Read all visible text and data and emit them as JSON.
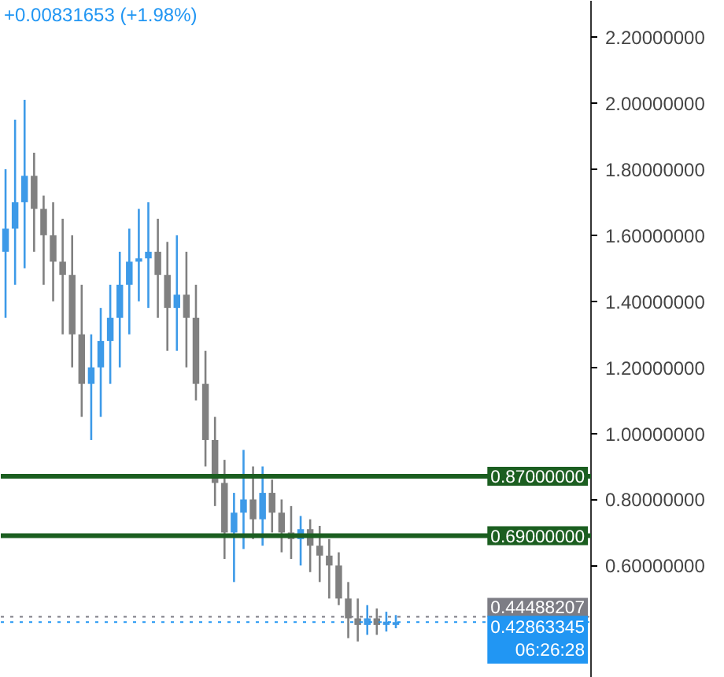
{
  "chart_data": {
    "type": "candlestick",
    "subtitle": "+0.00831653 (+1.98%)",
    "categories": [
      null,
      null,
      null,
      null,
      null,
      null,
      null,
      null,
      null,
      null,
      null,
      null,
      null,
      null,
      null,
      null,
      null,
      null,
      null,
      null,
      null,
      null,
      null,
      null,
      null,
      null,
      null,
      null,
      null,
      null,
      null,
      null,
      null,
      null,
      null,
      null,
      null,
      null,
      null,
      null,
      null,
      null,
      null,
      null,
      null,
      null,
      null,
      null,
      null,
      null,
      null,
      null,
      null,
      null,
      null,
      null,
      null,
      null,
      null,
      null,
      null,
      null
    ],
    "ohlc": [
      [
        1.55,
        1.8,
        1.35,
        1.62
      ],
      [
        1.62,
        1.95,
        1.45,
        1.7
      ],
      [
        1.7,
        2.01,
        1.5,
        1.78
      ],
      [
        1.78,
        1.85,
        1.55,
        1.68
      ],
      [
        1.68,
        1.72,
        1.45,
        1.6
      ],
      [
        1.6,
        1.7,
        1.4,
        1.52
      ],
      [
        1.52,
        1.65,
        1.3,
        1.48
      ],
      [
        1.48,
        1.6,
        1.2,
        1.3
      ],
      [
        1.3,
        1.45,
        1.05,
        1.15
      ],
      [
        1.15,
        1.3,
        0.98,
        1.2
      ],
      [
        1.2,
        1.38,
        1.05,
        1.28
      ],
      [
        1.28,
        1.45,
        1.15,
        1.35
      ],
      [
        1.35,
        1.55,
        1.2,
        1.45
      ],
      [
        1.45,
        1.62,
        1.3,
        1.52
      ],
      [
        1.52,
        1.68,
        1.4,
        1.53
      ],
      [
        1.53,
        1.7,
        1.38,
        1.55
      ],
      [
        1.55,
        1.65,
        1.35,
        1.48
      ],
      [
        1.48,
        1.58,
        1.25,
        1.38
      ],
      [
        1.38,
        1.6,
        1.25,
        1.42
      ],
      [
        1.42,
        1.55,
        1.2,
        1.35
      ],
      [
        1.35,
        1.45,
        1.1,
        1.15
      ],
      [
        1.15,
        1.25,
        0.9,
        0.98
      ],
      [
        0.98,
        1.05,
        0.78,
        0.85
      ],
      [
        0.85,
        0.92,
        0.62,
        0.7
      ],
      [
        0.7,
        0.82,
        0.55,
        0.76
      ],
      [
        0.76,
        0.95,
        0.65,
        0.8
      ],
      [
        0.8,
        0.9,
        0.68,
        0.74
      ],
      [
        0.74,
        0.9,
        0.66,
        0.82
      ],
      [
        0.82,
        0.86,
        0.7,
        0.76
      ],
      [
        0.76,
        0.8,
        0.64,
        0.7
      ],
      [
        0.7,
        0.78,
        0.62,
        0.68
      ],
      [
        0.68,
        0.75,
        0.6,
        0.71
      ],
      [
        0.71,
        0.74,
        0.58,
        0.66
      ],
      [
        0.66,
        0.72,
        0.55,
        0.63
      ],
      [
        0.63,
        0.68,
        0.5,
        0.6
      ],
      [
        0.6,
        0.64,
        0.48,
        0.5
      ],
      [
        0.5,
        0.55,
        0.38,
        0.44
      ],
      [
        0.44,
        0.5,
        0.37,
        0.42
      ],
      [
        0.42,
        0.48,
        0.39,
        0.44
      ],
      [
        0.44,
        0.47,
        0.39,
        0.42
      ],
      [
        0.42,
        0.46,
        0.4,
        0.43
      ],
      [
        0.42,
        0.45,
        0.41,
        0.42863345
      ],
      null,
      null,
      null,
      null,
      null,
      null,
      null,
      null,
      null,
      null,
      null,
      null,
      null,
      null,
      null,
      null,
      null,
      null,
      null,
      null
    ],
    "colors": [
      "#3d9ae8",
      "#3d9ae8",
      "#3d9ae8",
      "#808080",
      "#808080",
      "#808080",
      "#808080",
      "#808080",
      "#808080",
      "#3d9ae8",
      "#3d9ae8",
      "#3d9ae8",
      "#3d9ae8",
      "#3d9ae8",
      "#3d9ae8",
      "#3d9ae8",
      "#808080",
      "#808080",
      "#3d9ae8",
      "#808080",
      "#808080",
      "#808080",
      "#808080",
      "#808080",
      "#3d9ae8",
      "#3d9ae8",
      "#808080",
      "#3d9ae8",
      "#808080",
      "#808080",
      "#808080",
      "#3d9ae8",
      "#808080",
      "#808080",
      "#808080",
      "#808080",
      "#808080",
      "#808080",
      "#3d9ae8",
      "#808080",
      "#3d9ae8",
      "#3d9ae8",
      null,
      null,
      null,
      null,
      null,
      null,
      null,
      null,
      null,
      null,
      null,
      null,
      null,
      null,
      null,
      null,
      null,
      null,
      null,
      null
    ],
    "ylim": [
      0.26,
      2.31
    ],
    "yticks": [
      {
        "value": 0.6,
        "label": "0.60000000"
      },
      {
        "value": 0.8,
        "label": "0.80000000"
      },
      {
        "value": 1.0,
        "label": "1.00000000"
      },
      {
        "value": 1.2,
        "label": "1.20000000"
      },
      {
        "value": 1.4,
        "label": "1.40000000"
      },
      {
        "value": 1.6,
        "label": "1.60000000"
      },
      {
        "value": 1.8,
        "label": "1.80000000"
      },
      {
        "value": 2.0,
        "label": "2.00000000"
      },
      {
        "value": 2.2,
        "label": "2.20000000"
      }
    ],
    "ref_lines": [
      {
        "axis": "y",
        "value": 0.87,
        "label": "0.87000000",
        "color": "#1b5e20",
        "line_style": "solid"
      },
      {
        "axis": "y",
        "value": 0.69,
        "label": "0.69000000",
        "color": "#1b5e20",
        "line_style": "solid"
      },
      {
        "axis": "y",
        "value": 0.44488207,
        "label": "0.44488207",
        "color": "#7d7d85",
        "line_style": "dotted"
      },
      {
        "axis": "y",
        "value": 0.42863345,
        "label": "0.42863345\n06:26:28",
        "color": "#2196f3",
        "line_style": "dotted"
      }
    ],
    "tick_labels": "y",
    "grid": false
  }
}
